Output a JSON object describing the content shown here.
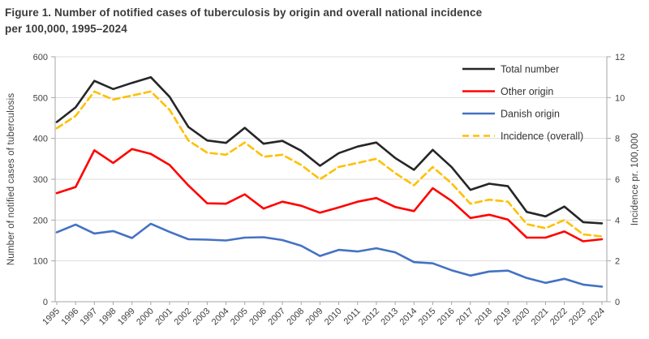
{
  "title": {
    "line1": "Figure 1. Number of notified cases of tuberculosis by origin and overall national incidence",
    "line2": "per 100,000, 1995–2024"
  },
  "chart_data": {
    "type": "line",
    "x": [
      1995,
      1996,
      1997,
      1998,
      1999,
      2000,
      2001,
      2002,
      2003,
      2004,
      2005,
      2006,
      2007,
      2008,
      2009,
      2010,
      2011,
      2012,
      2013,
      2014,
      2015,
      2016,
      2017,
      2018,
      2019,
      2020,
      2021,
      2022,
      2023,
      2024
    ],
    "series": [
      {
        "name": "Total number",
        "axis": "left",
        "color": "#262626",
        "dash": "",
        "values": [
          440,
          476,
          541,
          521,
          536,
          550,
          502,
          428,
          395,
          389,
          426,
          387,
          394,
          370,
          333,
          364,
          380,
          390,
          352,
          323,
          372,
          330,
          274,
          289,
          283,
          220,
          209,
          233,
          195,
          192
        ]
      },
      {
        "name": "Other origin",
        "axis": "left",
        "color": "#ff0000",
        "dash": "",
        "values": [
          266,
          281,
          371,
          340,
          374,
          362,
          335,
          285,
          241,
          240,
          263,
          228,
          245,
          235,
          218,
          231,
          245,
          254,
          232,
          222,
          278,
          247,
          205,
          213,
          201,
          157,
          157,
          172,
          148,
          153
        ]
      },
      {
        "name": "Danish origin",
        "axis": "left",
        "color": "#4472c4",
        "dash": "",
        "values": [
          170,
          189,
          167,
          173,
          156,
          191,
          171,
          153,
          152,
          150,
          157,
          158,
          151,
          137,
          112,
          127,
          123,
          131,
          121,
          97,
          94,
          77,
          64,
          74,
          76,
          58,
          46,
          56,
          42,
          37
        ]
      },
      {
        "name": "Incidence (overall)",
        "axis": "right",
        "color": "#ffc000",
        "dash": "8 5",
        "values": [
          8.5,
          9.1,
          10.3,
          9.9,
          10.1,
          10.3,
          9.4,
          7.9,
          7.3,
          7.2,
          7.8,
          7.1,
          7.2,
          6.7,
          6.0,
          6.6,
          6.8,
          7.0,
          6.3,
          5.7,
          6.6,
          5.8,
          4.8,
          5.0,
          4.9,
          3.8,
          3.6,
          4.0,
          3.3,
          3.2
        ]
      }
    ],
    "ylabel_left": "Number of notified cases of tuberculosis",
    "ylabel_right": "Incidence pr. 100,000",
    "ylim_left": [
      0,
      600
    ],
    "yticks_left": [
      0,
      100,
      200,
      300,
      400,
      500,
      600
    ],
    "ylim_right": [
      0,
      12
    ],
    "yticks_right": [
      0,
      2,
      4,
      6,
      8,
      10,
      12
    ],
    "grid": true,
    "legend_position": "top-right",
    "colors": {
      "grid": "#dcdcdc",
      "axis": "#a6a6a6"
    }
  }
}
